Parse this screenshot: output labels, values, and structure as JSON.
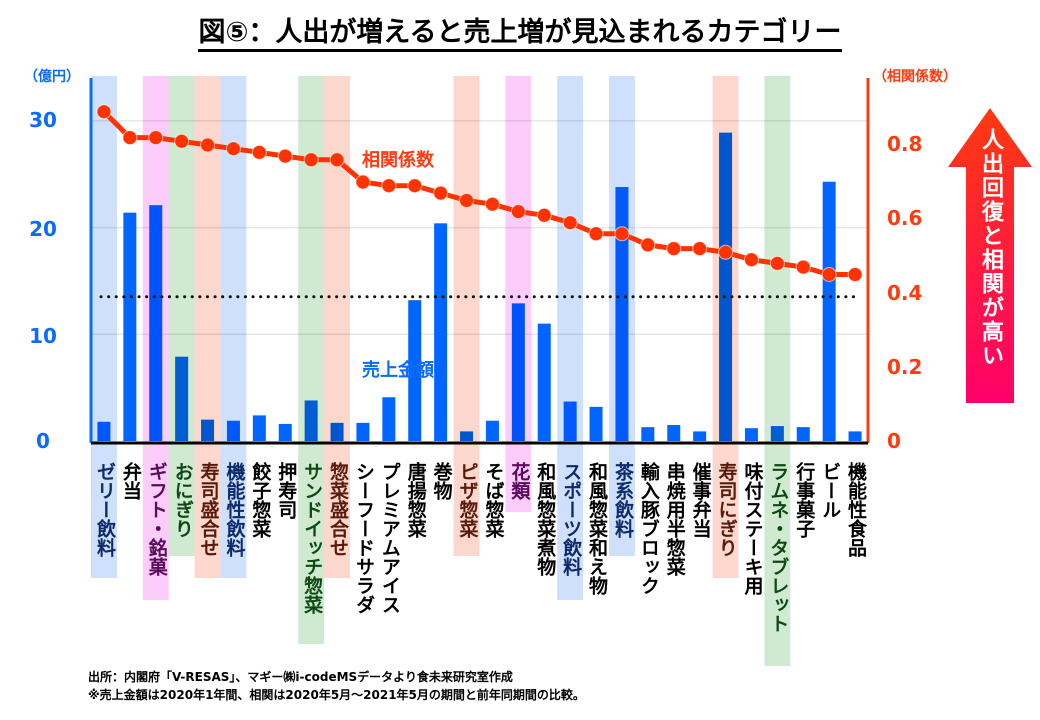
{
  "title": "図⑤：人出が増えると売上増が見込まれるカテゴリー",
  "chart_data": {
    "type": "bar+line",
    "title": "図⑤：人出が増えると売上増が見込まれるカテゴリー",
    "left_axis": {
      "label": "（億円）",
      "range": [
        0,
        30
      ],
      "ticks": [
        "0",
        "10",
        "20",
        "30"
      ],
      "color": "#0a6bff"
    },
    "right_axis": {
      "label": "（相関係数）",
      "range": [
        0,
        0.8
      ],
      "ticks": [
        "0",
        "0.2",
        "0.4",
        "0.6",
        "0.8"
      ],
      "color": "#ff3b10"
    },
    "grid": true,
    "threshold_line": {
      "axis": "right",
      "value": 0.39,
      "style": "dotted"
    },
    "categories": [
      "ゼリー飲料",
      "弁当",
      "ギフト・銘菓",
      "おにぎり",
      "寿司盛合せ",
      "機能性飲料",
      "餃子惣菜",
      "押寿司",
      "サンドイッチ惣菜",
      "惣菜盛合せ",
      "シーフードサラダ",
      "プレミアムアイス",
      "唐揚惣菜",
      "巻物",
      "ピザ惣菜",
      "そば惣菜",
      "花類",
      "和風惣菜煮物",
      "スポーツ飲料",
      "和風惣菜和え物",
      "茶系飲料",
      "輸入豚ブロック",
      "串焼用半惣菜",
      "催事弁当",
      "寿司にぎり",
      "味付ステーキ用",
      "ラムネ・タブレット",
      "行事菓子",
      "ビール",
      "機能性食品"
    ],
    "highlight": [
      "blue",
      "",
      "pink",
      "green",
      "salmon",
      "blue",
      "",
      "",
      "green",
      "salmon",
      "",
      "",
      "",
      "",
      "salmon",
      "",
      "pink",
      "",
      "blue",
      "",
      "blue",
      "",
      "",
      "",
      "salmon",
      "",
      "green",
      "",
      "",
      ""
    ],
    "highlight_colors": {
      "blue": "#c9ddfb",
      "pink": "#fcc8fb",
      "green": "#cbe8cd",
      "salmon": "#fcd3c9"
    },
    "label_colors": {
      "blue": "#0d2a6b",
      "pink": "#5a0a5a",
      "green": "#0d4a12",
      "salmon": "#5a1a0a",
      "": "#000000"
    },
    "series": [
      {
        "name": "売上金額",
        "type": "bar",
        "axis": "left",
        "color": "#0066ff",
        "values": [
          1.8,
          21.4,
          22.1,
          7.9,
          2.0,
          1.9,
          2.4,
          1.6,
          3.8,
          1.7,
          1.7,
          4.1,
          13.2,
          20.4,
          0.9,
          1.9,
          12.9,
          11.0,
          3.7,
          3.2,
          23.8,
          1.3,
          1.5,
          0.9,
          28.9,
          1.2,
          1.4,
          1.3,
          24.3,
          0.9
        ]
      },
      {
        "name": "相関係数",
        "type": "line",
        "axis": "right",
        "color": "#ff3300",
        "values": [
          0.89,
          0.82,
          0.82,
          0.81,
          0.8,
          0.79,
          0.78,
          0.77,
          0.76,
          0.76,
          0.7,
          0.69,
          0.69,
          0.67,
          0.65,
          0.64,
          0.62,
          0.61,
          0.59,
          0.56,
          0.56,
          0.53,
          0.52,
          0.52,
          0.51,
          0.49,
          0.48,
          0.47,
          0.45,
          0.45
        ]
      }
    ],
    "annotations": {
      "arrow_text": "人出回復と相関が高い"
    }
  },
  "labels": {
    "series_bar": "売上金額",
    "series_line": "相関係数"
  },
  "notes": [
    "出所：内閣府「V-RESAS」、マギー㈱i-codeMSデータより食未来研究室作成",
    "※売上金額は2020年1年間、相関は2020年5月～2021年5月の期間と前年同期間の比較。"
  ]
}
